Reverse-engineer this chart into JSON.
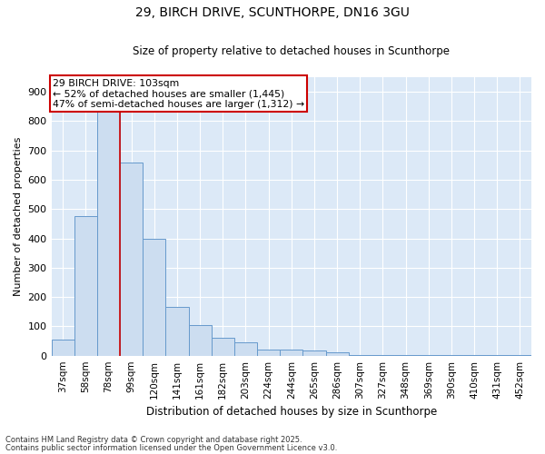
{
  "title_line1": "29, BIRCH DRIVE, SCUNTHORPE, DN16 3GU",
  "title_line2": "Size of property relative to detached houses in Scunthorpe",
  "xlabel": "Distribution of detached houses by size in Scunthorpe",
  "ylabel": "Number of detached properties",
  "bar_color": "#ccddf0",
  "bar_edge_color": "#6699cc",
  "background_color": "#dce9f7",
  "grid_color": "#ffffff",
  "annotation_box_color": "#cc0000",
  "annotation_line_color": "#cc0000",
  "categories": [
    "37sqm",
    "58sqm",
    "78sqm",
    "99sqm",
    "120sqm",
    "141sqm",
    "161sqm",
    "182sqm",
    "203sqm",
    "224sqm",
    "244sqm",
    "265sqm",
    "286sqm",
    "307sqm",
    "327sqm",
    "348sqm",
    "369sqm",
    "390sqm",
    "410sqm",
    "431sqm",
    "452sqm"
  ],
  "values": [
    55,
    475,
    870,
    660,
    400,
    165,
    105,
    60,
    45,
    22,
    20,
    18,
    10,
    2,
    2,
    2,
    2,
    2,
    2,
    2,
    2
  ],
  "annotation_text": "29 BIRCH DRIVE: 103sqm\n← 52% of detached houses are smaller (1,445)\n47% of semi-detached houses are larger (1,312) →",
  "footer_line1": "Contains HM Land Registry data © Crown copyright and database right 2025.",
  "footer_line2": "Contains public sector information licensed under the Open Government Licence v3.0.",
  "ylim": [
    0,
    950
  ],
  "yticks": [
    0,
    100,
    200,
    300,
    400,
    500,
    600,
    700,
    800,
    900
  ],
  "vline_x": 2.5
}
